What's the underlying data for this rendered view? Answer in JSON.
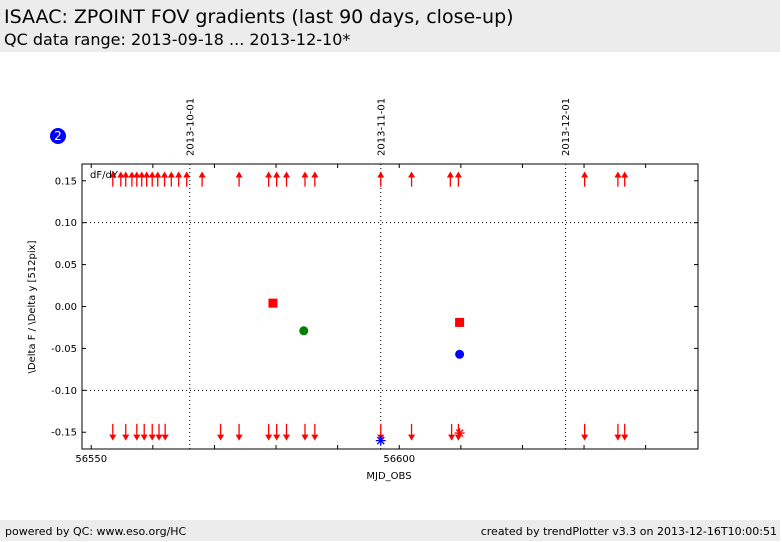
{
  "header": {
    "title": "ISAAC: ZPOINT FOV gradients (last 90 days, close-up)",
    "subtitle": "QC data range: 2013-09-18 ... 2013-12-10*"
  },
  "badge": {
    "number": "2",
    "color": "#0000ff"
  },
  "footer": {
    "left": "powered by QC: www.eso.org/HC",
    "right": "created by trendPlotter v3.3 on 2013-12-16T10:00:51"
  },
  "colors": {
    "red": "#ff0000",
    "green": "#008000",
    "blue": "#0000ff"
  },
  "chart_data": {
    "type": "scatter",
    "title": "",
    "annotation": "dF/dY",
    "xlabel": "MJD_OBS",
    "ylabel": "\\Delta F / \\Delta y [512pix]",
    "xlim": [
      56548.5,
      56648.5
    ],
    "ylim": [
      -0.17,
      0.17
    ],
    "x_ticks": [
      56550,
      56600
    ],
    "x_tick_labels": [
      "56550",
      "56600"
    ],
    "y_ticks": [
      0.15,
      0.1,
      0.05,
      0.0,
      -0.05,
      -0.1,
      -0.15
    ],
    "y_tick_labels": [
      "0.15",
      "0.10",
      "0.05",
      "0.00",
      "-0.05",
      "-0.10",
      "-0.15"
    ],
    "reference_lines_y": [
      0.1,
      -0.1
    ],
    "date_lines": [
      {
        "x": 56566,
        "label": "2013-10-01"
      },
      {
        "x": 56597,
        "label": "2013-11-01"
      },
      {
        "x": 56627,
        "label": "2013-12-01"
      }
    ],
    "series": [
      {
        "color": "red",
        "marker": "square",
        "points": [
          [
            56579.5,
            0.004
          ],
          [
            56609.8,
            -0.019
          ]
        ]
      },
      {
        "color": "green",
        "marker": "circle",
        "points": [
          [
            56584.5,
            -0.029
          ]
        ]
      },
      {
        "color": "blue",
        "marker": "circle",
        "points": [
          [
            56609.8,
            -0.057
          ]
        ]
      },
      {
        "color": "blue",
        "marker": "star",
        "points": [
          [
            56597.0,
            -0.16
          ]
        ]
      },
      {
        "color": "red",
        "marker": "star",
        "points": [
          [
            56609.8,
            -0.151
          ]
        ]
      }
    ],
    "out_of_range_high": [
      56553.5,
      56554.8,
      56555.6,
      56556.6,
      56557.4,
      56558.2,
      56559.0,
      56559.9,
      56560.8,
      56561.9,
      56563.0,
      56564.2,
      56565.5,
      56568.0,
      56574.0,
      56578.8,
      56580.1,
      56581.7,
      56584.7,
      56586.3,
      56597.0,
      56602.0,
      56608.3,
      56609.6,
      56630.1,
      56635.5,
      56636.6
    ],
    "out_of_range_low": [
      56553.5,
      56555.6,
      56557.4,
      56558.6,
      56559.9,
      56561.0,
      56562.0,
      56571.0,
      56574.0,
      56578.8,
      56580.1,
      56581.7,
      56584.7,
      56586.3,
      56597.0,
      56602.0,
      56608.5,
      56609.6,
      56630.1,
      56635.5,
      56636.6
    ]
  }
}
